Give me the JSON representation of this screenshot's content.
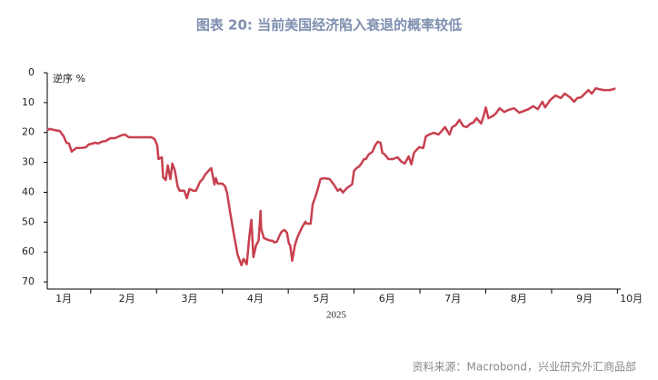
{
  "chart_data": {
    "type": "line",
    "title": "图表 20: 当前美国经济陷入衰退的概率较低",
    "y_label": "逆序 %",
    "x_label": "2025",
    "source": "资料来源：Macrobond，兴业研究外汇商品部",
    "y_inverted": true,
    "xlim": [
      1.34,
      10.05
    ],
    "ylim": [
      0,
      72.4
    ],
    "yticks": [
      0,
      10,
      20,
      30,
      40,
      50,
      60,
      70
    ],
    "xticks": [
      {
        "value": 1.59,
        "label": "1月"
      },
      {
        "value": 2.55,
        "label": "2月"
      },
      {
        "value": 3.5,
        "label": "3月"
      },
      {
        "value": 4.5,
        "label": "4月"
      },
      {
        "value": 5.5,
        "label": "5月"
      },
      {
        "value": 6.5,
        "label": "6月"
      },
      {
        "value": 7.5,
        "label": "7月"
      },
      {
        "value": 8.5,
        "label": "8月"
      },
      {
        "value": 9.5,
        "label": "9月"
      },
      {
        "value": 10.21,
        "label": "10月"
      }
    ],
    "series": [
      {
        "color": "#c8404f",
        "x": [
          1.34,
          1.38,
          1.45,
          1.53,
          1.59,
          1.63,
          1.67,
          1.71,
          1.78,
          1.86,
          1.93,
          1.97,
          2.03,
          2.07,
          2.11,
          2.17,
          2.23,
          2.3,
          2.37,
          2.46,
          2.52,
          2.58,
          2.69,
          2.83,
          2.92,
          2.97,
          3.01,
          3.03,
          3.08,
          3.1,
          3.14,
          3.17,
          3.21,
          3.24,
          3.28,
          3.32,
          3.35,
          3.42,
          3.46,
          3.5,
          3.56,
          3.6,
          3.66,
          3.7,
          3.74,
          3.79,
          3.83,
          3.88,
          3.9,
          3.93,
          4.0,
          4.04,
          4.07,
          4.12,
          4.18,
          4.23,
          4.29,
          4.32,
          4.34,
          4.37,
          4.41,
          4.44,
          4.47,
          4.51,
          4.55,
          4.57,
          4.58,
          4.59,
          4.63,
          4.69,
          4.73,
          4.76,
          4.79,
          4.83,
          4.87,
          4.9,
          4.94,
          4.98,
          5.01,
          5.03,
          5.06,
          5.1,
          5.14,
          5.21,
          5.26,
          5.28,
          5.34,
          5.37,
          5.42,
          5.46,
          5.49,
          5.54,
          5.63,
          5.7,
          5.75,
          5.79,
          5.83,
          5.89,
          5.93,
          5.97,
          6.0,
          6.04,
          6.08,
          6.11,
          6.15,
          6.18,
          6.22,
          6.28,
          6.32,
          6.36,
          6.4,
          6.43,
          6.47,
          6.52,
          6.59,
          6.66,
          6.72,
          6.77,
          6.83,
          6.87,
          6.91,
          6.95,
          6.99,
          7.05,
          7.09,
          7.14,
          7.21,
          7.28,
          7.32,
          7.38,
          7.45,
          7.49,
          7.54,
          7.6,
          7.66,
          7.71,
          7.77,
          7.81,
          7.86,
          7.93,
          7.97,
          8.0,
          8.04,
          8.1,
          8.15,
          8.21,
          8.28,
          8.34,
          8.43,
          8.51,
          8.58,
          8.65,
          8.72,
          8.79,
          8.86,
          8.9,
          8.98,
          9.06,
          9.14,
          9.2,
          9.28,
          9.34,
          9.39,
          9.45,
          9.49,
          9.56,
          9.61,
          9.67,
          9.72,
          9.79,
          9.88,
          9.94,
          9.97
        ],
        "values": [
          19.2,
          18.8,
          19.2,
          19.5,
          21.3,
          23.4,
          23.7,
          26.4,
          25.2,
          25.2,
          24.9,
          24.0,
          23.7,
          23.4,
          23.7,
          23.1,
          22.8,
          21.9,
          21.9,
          21.0,
          20.7,
          21.6,
          21.6,
          21.6,
          21.6,
          22.2,
          24.3,
          28.9,
          28.3,
          35.0,
          35.9,
          31.0,
          35.6,
          30.4,
          32.8,
          38.0,
          39.5,
          39.5,
          42.0,
          38.9,
          39.5,
          39.5,
          36.5,
          35.6,
          34.0,
          32.8,
          31.9,
          37.4,
          35.3,
          37.1,
          37.1,
          38.0,
          40.1,
          47.1,
          54.7,
          60.8,
          64.4,
          62.3,
          62.9,
          64.1,
          54.7,
          49.2,
          61.7,
          57.8,
          56.2,
          49.6,
          46.2,
          52.3,
          55.3,
          55.9,
          56.2,
          56.2,
          56.8,
          56.5,
          54.4,
          53.2,
          52.6,
          53.5,
          57.2,
          57.8,
          62.9,
          57.8,
          55.0,
          51.7,
          49.9,
          50.5,
          50.5,
          44.1,
          41.0,
          38.0,
          35.6,
          35.3,
          35.6,
          37.7,
          39.5,
          38.9,
          40.1,
          38.6,
          38.0,
          37.4,
          32.8,
          31.9,
          31.3,
          30.4,
          28.9,
          28.9,
          27.4,
          26.4,
          24.3,
          23.1,
          23.4,
          26.8,
          27.4,
          28.9,
          28.9,
          28.3,
          29.8,
          30.4,
          28.0,
          30.7,
          26.8,
          25.8,
          24.9,
          25.2,
          21.3,
          20.7,
          20.1,
          20.7,
          19.8,
          18.2,
          20.7,
          18.2,
          17.6,
          15.8,
          17.9,
          18.2,
          17.0,
          16.7,
          15.2,
          17.0,
          14.3,
          11.6,
          15.2,
          14.6,
          13.7,
          11.9,
          13.1,
          12.5,
          11.9,
          13.4,
          12.8,
          12.2,
          11.2,
          12.2,
          9.7,
          11.6,
          9.1,
          7.6,
          8.5,
          7.0,
          8.2,
          9.7,
          8.5,
          8.2,
          7.3,
          5.8,
          7.0,
          5.2,
          5.5,
          5.8,
          5.8,
          5.5,
          5.2
        ]
      }
    ]
  }
}
